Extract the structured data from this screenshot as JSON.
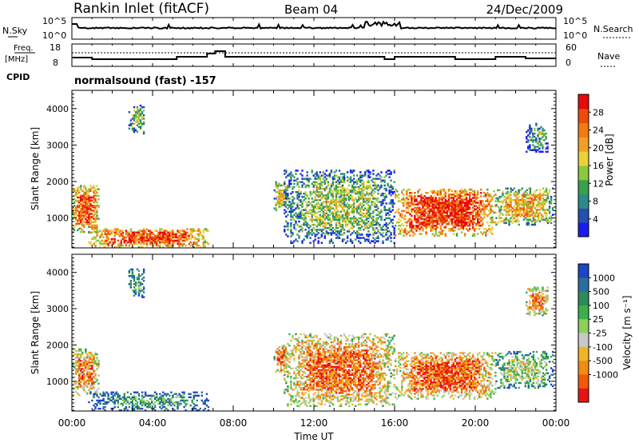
{
  "header": {
    "station": "Rankin Inlet (fitACF)",
    "beam": "Beam 04",
    "date": "24/Dec/2009"
  },
  "noise_panel": {
    "left_label": "N.Sky",
    "left_ticks": [
      "10^5",
      "10^0"
    ],
    "right_label": "N.Search",
    "right_ticks": [
      "10^5",
      "10^0"
    ]
  },
  "freq_panel": {
    "left_label_1": "Freq.",
    "left_label_2": "[MHz]",
    "left_ticks": [
      "18",
      "8"
    ],
    "right_label": "Nave",
    "right_ticks": [
      "60",
      "0"
    ]
  },
  "cpid": {
    "label": "CPID",
    "text": "normalsound (fast) -157"
  },
  "chart_data": [
    {
      "type": "heatmap",
      "name": "power",
      "ylabel": "Slant Range [km]",
      "ylim": [
        180,
        4500
      ],
      "y_ticks": [
        "1000",
        "2000",
        "3000",
        "4000"
      ],
      "y_tick_values": [
        1000,
        2000,
        3000,
        4000
      ],
      "xlim_hours": [
        0,
        24
      ],
      "colorbar_label": "Power [dB]",
      "colorbar_ticks": [
        "4",
        "8",
        "12",
        "16",
        "20",
        "24",
        "28"
      ],
      "colorbar_range": [
        0,
        32
      ],
      "colorbar_colors": [
        "#1c1cf0",
        "#2450b0",
        "#2e8a8a",
        "#3aa04a",
        "#8cc83c",
        "#e8d23c",
        "#f0a028",
        "#f07a14",
        "#f04a0a",
        "#e80a0a"
      ],
      "echo_regions": [
        {
          "t": [
            0.0,
            1.3
          ],
          "r": [
            600,
            1900
          ],
          "level": 0.8
        },
        {
          "t": [
            0.8,
            6.8
          ],
          "r": [
            180,
            700
          ],
          "level": 0.85
        },
        {
          "t": [
            2.8,
            3.6
          ],
          "r": [
            3300,
            4100
          ],
          "level": 0.45
        },
        {
          "t": [
            10.0,
            10.7
          ],
          "r": [
            1200,
            2000
          ],
          "level": 0.6
        },
        {
          "t": [
            10.5,
            16.0
          ],
          "r": [
            300,
            2300
          ],
          "level": 0.45
        },
        {
          "t": [
            16.0,
            21.0
          ],
          "r": [
            500,
            1800
          ],
          "level": 0.9
        },
        {
          "t": [
            21.0,
            23.8
          ],
          "r": [
            800,
            1800
          ],
          "level": 0.65
        },
        {
          "t": [
            22.5,
            23.6
          ],
          "r": [
            2800,
            3600
          ],
          "level": 0.35
        }
      ]
    },
    {
      "type": "heatmap",
      "name": "velocity",
      "ylabel": "Slant Range [km]",
      "ylim": [
        180,
        4500
      ],
      "y_ticks": [
        "1000",
        "2000",
        "3000",
        "4000"
      ],
      "y_tick_values": [
        1000,
        2000,
        3000,
        4000
      ],
      "xlim_hours": [
        0,
        24
      ],
      "xlabel": "Time UT",
      "x_ticks": [
        "00:00",
        "04:00",
        "08:00",
        "12:00",
        "16:00",
        "20:00",
        "00:00"
      ],
      "colorbar_label": "Velocity [m s⁻¹]",
      "colorbar_ticks": [
        "1000",
        "500",
        "100",
        "25",
        "-25",
        "-100",
        "-500",
        "-1000"
      ],
      "colorbar_colors": [
        "#1c46c8",
        "#2a6ea0",
        "#2e8a5a",
        "#3ab04a",
        "#8cd05a",
        "#c8c8c8",
        "#f0b428",
        "#f08c14",
        "#f05a0a",
        "#e81414"
      ],
      "echo_regions": [
        {
          "t": [
            0.0,
            1.3
          ],
          "r": [
            600,
            1900
          ],
          "level": 0.75
        },
        {
          "t": [
            0.8,
            6.8
          ],
          "r": [
            180,
            700
          ],
          "level": 0.3
        },
        {
          "t": [
            2.8,
            3.6
          ],
          "r": [
            3300,
            4100
          ],
          "level": 0.35
        },
        {
          "t": [
            10.0,
            10.7
          ],
          "r": [
            1200,
            2000
          ],
          "level": 0.8
        },
        {
          "t": [
            10.5,
            16.0
          ],
          "r": [
            300,
            2300
          ],
          "level": 0.8
        },
        {
          "t": [
            16.0,
            21.0
          ],
          "r": [
            500,
            1800
          ],
          "level": 0.85
        },
        {
          "t": [
            21.0,
            23.8
          ],
          "r": [
            800,
            1800
          ],
          "level": 0.5
        },
        {
          "t": [
            22.5,
            23.6
          ],
          "r": [
            2800,
            3600
          ],
          "level": 0.75
        }
      ]
    }
  ]
}
